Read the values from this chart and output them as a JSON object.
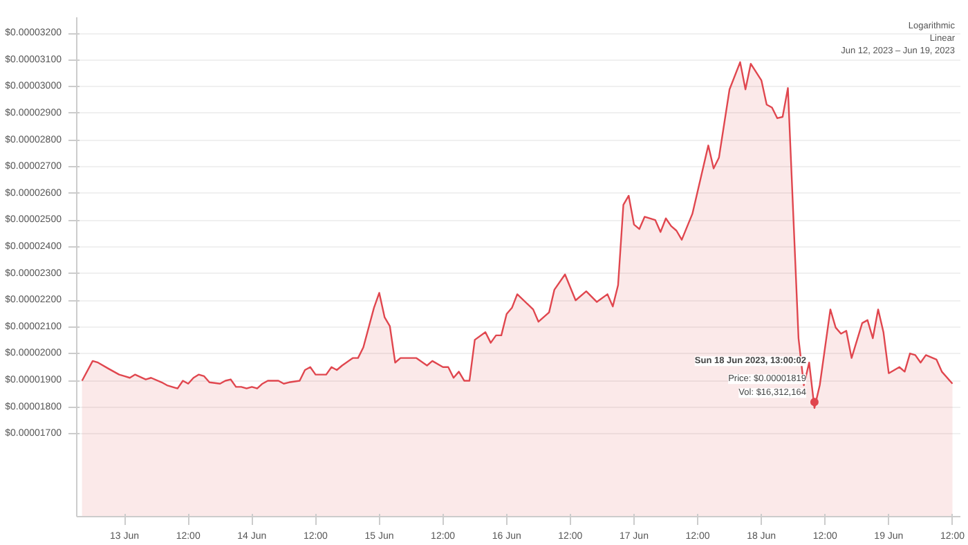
{
  "chart_data": {
    "type": "area",
    "color": "#e0464e",
    "x": [
      "2023-06-12T16:00",
      "2023-06-12T18:00",
      "2023-06-12T19:00",
      "2023-06-12T21:00",
      "2023-06-12T23:00",
      "2023-06-13T00:00",
      "2023-06-13T01:00",
      "2023-06-13T02:00",
      "2023-06-13T04:00",
      "2023-06-13T05:00",
      "2023-06-13T07:00",
      "2023-06-13T08:00",
      "2023-06-13T10:00",
      "2023-06-13T11:00",
      "2023-06-13T12:00",
      "2023-06-13T13:00",
      "2023-06-13T14:00",
      "2023-06-13T15:00",
      "2023-06-13T16:00",
      "2023-06-13T18:00",
      "2023-06-13T19:00",
      "2023-06-13T20:00",
      "2023-06-13T21:00",
      "2023-06-13T22:00",
      "2023-06-13T23:00",
      "2023-06-14T00:00",
      "2023-06-14T01:00",
      "2023-06-14T02:00",
      "2023-06-14T03:00",
      "2023-06-14T05:00",
      "2023-06-14T06:00",
      "2023-06-14T07:00",
      "2023-06-14T09:00",
      "2023-06-14T10:00",
      "2023-06-14T11:00",
      "2023-06-14T12:00",
      "2023-06-14T14:00",
      "2023-06-14T15:00",
      "2023-06-14T16:00",
      "2023-06-14T17:00",
      "2023-06-14T19:00",
      "2023-06-14T20:00",
      "2023-06-14T21:00",
      "2023-06-14T23:00",
      "2023-06-15T00:00",
      "2023-06-15T01:00",
      "2023-06-15T02:00",
      "2023-06-15T03:00",
      "2023-06-15T04:00",
      "2023-06-15T07:00",
      "2023-06-15T09:00",
      "2023-06-15T10:00",
      "2023-06-15T12:00",
      "2023-06-15T13:00",
      "2023-06-15T14:00",
      "2023-06-15T15:00",
      "2023-06-15T16:00",
      "2023-06-15T17:00",
      "2023-06-15T18:00",
      "2023-06-15T20:00",
      "2023-06-15T21:00",
      "2023-06-15T22:00",
      "2023-06-15T23:00",
      "2023-06-16T00:00",
      "2023-06-16T01:00",
      "2023-06-16T02:00",
      "2023-06-16T05:00",
      "2023-06-16T06:00",
      "2023-06-16T08:00",
      "2023-06-16T09:00",
      "2023-06-16T11:00",
      "2023-06-16T13:00",
      "2023-06-16T15:00",
      "2023-06-16T17:00",
      "2023-06-16T19:00",
      "2023-06-16T20:00",
      "2023-06-16T21:00",
      "2023-06-16T22:00",
      "2023-06-16T23:00",
      "2023-06-17T00:00",
      "2023-06-17T01:00",
      "2023-06-17T02:00",
      "2023-06-17T04:00",
      "2023-06-17T05:00",
      "2023-06-17T06:00",
      "2023-06-17T07:00",
      "2023-06-17T08:00",
      "2023-06-17T09:00",
      "2023-06-17T11:00",
      "2023-06-17T14:00",
      "2023-06-17T15:00",
      "2023-06-17T16:00",
      "2023-06-17T18:00",
      "2023-06-17T20:00",
      "2023-06-17T21:00",
      "2023-06-17T22:00",
      "2023-06-18T00:00",
      "2023-06-18T01:00",
      "2023-06-18T02:00",
      "2023-06-18T03:00",
      "2023-06-18T04:00",
      "2023-06-18T05:00",
      "2023-06-18T07:00",
      "2023-06-18T08:00",
      "2023-06-18T09:00",
      "2023-06-18T10:00",
      "2023-06-18T11:00",
      "2023-06-18T13:00",
      "2023-06-18T14:00",
      "2023-06-18T15:00",
      "2023-06-18T16:00",
      "2023-06-18T17:00",
      "2023-06-18T19:00",
      "2023-06-18T20:00",
      "2023-06-18T21:00",
      "2023-06-18T22:00",
      "2023-06-18T23:00",
      "2023-06-19T00:00",
      "2023-06-19T02:00",
      "2023-06-19T03:00",
      "2023-06-19T04:00",
      "2023-06-19T05:00",
      "2023-06-19T06:00",
      "2023-06-19T07:00",
      "2023-06-19T09:00",
      "2023-06-19T10:00",
      "2023-06-19T12:00"
    ],
    "values": [
      1.899e-05,
      1.973e-05,
      1.967e-05,
      1.944e-05,
      1.922e-05,
      1.916e-05,
      1.91e-05,
      1.922e-05,
      1.904e-05,
      1.91e-05,
      1.893e-05,
      1.882e-05,
      1.87e-05,
      1.899e-05,
      1.888e-05,
      1.91e-05,
      1.922e-05,
      1.916e-05,
      1.893e-05,
      1.888e-05,
      1.899e-05,
      1.904e-05,
      1.876e-05,
      1.876e-05,
      1.87e-05,
      1.876e-05,
      1.87e-05,
      1.888e-05,
      1.899e-05,
      1.899e-05,
      1.888e-05,
      1.893e-05,
      1.899e-05,
      1.939e-05,
      1.95e-05,
      1.922e-05,
      1.922e-05,
      1.95e-05,
      1.939e-05,
      1.956e-05,
      1.984e-05,
      1.984e-05,
      2.024e-05,
      2.172e-05,
      2.228e-05,
      2.137e-05,
      2.103e-05,
      1.967e-05,
      1.984e-05,
      1.984e-05,
      1.956e-05,
      1.973e-05,
      1.95e-05,
      1.95e-05,
      1.91e-05,
      1.933e-05,
      1.899e-05,
      1.899e-05,
      2.052e-05,
      2.081e-05,
      2.041e-05,
      2.069e-05,
      2.069e-05,
      2.149e-05,
      2.172e-05,
      2.223e-05,
      2.166e-05,
      2.12e-05,
      2.155e-05,
      2.24e-05,
      2.297e-05,
      2.2e-05,
      2.234e-05,
      2.194e-05,
      2.223e-05,
      2.177e-05,
      2.257e-05,
      2.558e-05,
      2.592e-05,
      2.484e-05,
      2.467e-05,
      2.513e-05,
      2.501e-05,
      2.456e-05,
      2.507e-05,
      2.478e-05,
      2.461e-05,
      2.427e-05,
      2.524e-05,
      2.78e-05,
      2.694e-05,
      2.734e-05,
      2.99e-05,
      3.092e-05,
      2.99e-05,
      3.086e-05,
      3.024e-05,
      2.933e-05,
      2.922e-05,
      2.882e-05,
      2.887e-05,
      2.995e-05,
      2.058e-05,
      1.882e-05,
      1.967e-05,
      1.797e-05,
      1.882e-05,
      2.166e-05,
      2.098e-05,
      2.075e-05,
      2.086e-05,
      1.984e-05,
      2.115e-05,
      2.126e-05,
      2.058e-05,
      2.166e-05,
      2.081e-05,
      1.927e-05,
      1.95e-05,
      1.933e-05,
      2.001e-05,
      1.995e-05,
      1.967e-05,
      1.995e-05,
      1.978e-05,
      1.933e-05,
      1.888e-05
    ],
    "xlim": [
      "2023-06-12T15:00",
      "2023-06-19T13:30"
    ],
    "ylim": [
      1.39e-05,
      3.26e-05
    ],
    "xticks": [
      {
        "value": "2023-06-13T00:00",
        "label": "13 Jun"
      },
      {
        "value": "2023-06-13T12:00",
        "label": "12:00"
      },
      {
        "value": "2023-06-14T00:00",
        "label": "14 Jun"
      },
      {
        "value": "2023-06-14T12:00",
        "label": "12:00"
      },
      {
        "value": "2023-06-15T00:00",
        "label": "15 Jun"
      },
      {
        "value": "2023-06-15T12:00",
        "label": "12:00"
      },
      {
        "value": "2023-06-16T00:00",
        "label": "16 Jun"
      },
      {
        "value": "2023-06-16T12:00",
        "label": "12:00"
      },
      {
        "value": "2023-06-17T00:00",
        "label": "17 Jun"
      },
      {
        "value": "2023-06-17T12:00",
        "label": "12:00"
      },
      {
        "value": "2023-06-18T00:00",
        "label": "18 Jun"
      },
      {
        "value": "2023-06-18T12:00",
        "label": "12:00"
      },
      {
        "value": "2023-06-19T00:00",
        "label": "19 Jun"
      },
      {
        "value": "2023-06-19T12:00",
        "label": "12:00"
      }
    ],
    "yticks": [
      {
        "value": 1.7e-05,
        "label": "$0.00001700"
      },
      {
        "value": 1.8e-05,
        "label": "$0.00001800"
      },
      {
        "value": 1.9e-05,
        "label": "$0.00001900"
      },
      {
        "value": 2e-05,
        "label": "$0.00002000"
      },
      {
        "value": 2.1e-05,
        "label": "$0.00002100"
      },
      {
        "value": 2.2e-05,
        "label": "$0.00002200"
      },
      {
        "value": 2.3e-05,
        "label": "$0.00002300"
      },
      {
        "value": 2.4e-05,
        "label": "$0.00002400"
      },
      {
        "value": 2.5e-05,
        "label": "$0.00002500"
      },
      {
        "value": 2.6e-05,
        "label": "$0.00002600"
      },
      {
        "value": 2.7e-05,
        "label": "$0.00002700"
      },
      {
        "value": 2.8e-05,
        "label": "$0.00002800"
      },
      {
        "value": 2.9e-05,
        "label": "$0.00002900"
      },
      {
        "value": 3e-05,
        "label": "$0.00003000"
      },
      {
        "value": 3.1e-05,
        "label": "$0.00003100"
      },
      {
        "value": 3.2e-05,
        "label": "$0.00003200"
      }
    ],
    "grid": "y",
    "annotations": [
      {
        "text": "Sun 18 Jun 2023, 13:00:02\nPrice: $0.00001819\nVol: $16,312,164",
        "x": "2023-06-18T10:00",
        "y": 1.819e-05
      },
      "Logarithmic",
      "Linear",
      "Jun 12, 2023 – Jun 19, 2023"
    ]
  }
}
